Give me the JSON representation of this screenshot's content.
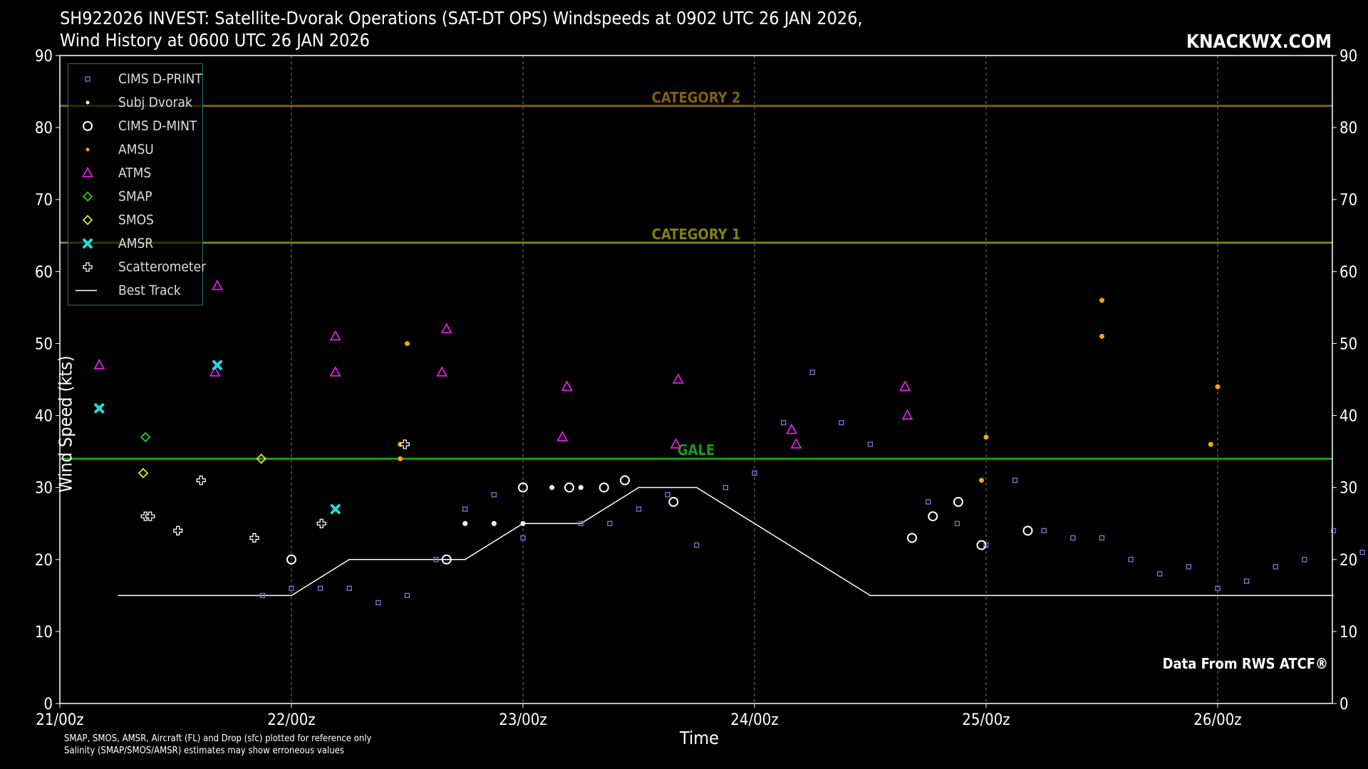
{
  "header": {
    "title_line1": "SH922026 INVEST: Satellite-Dvorak Operations (SAT-DT OPS) Windspeeds at 0902 UTC 26 JAN 2026,",
    "title_line2": "Wind History at 0600 UTC 26 JAN 2026",
    "brand": "KNACKWX.COM"
  },
  "footer": {
    "credit": "Data From RWS ATCF®",
    "note_line1": "SMAP, SMOS, AMSR, Aircraft (FL) and Drop (sfc) plotted for reference only",
    "note_line2": "Salinity (SMAP/SMOS/AMSR) estimates may show erroneous values"
  },
  "colors": {
    "dprint": "#8f6fdc",
    "subj": "#ffffff",
    "dmint": "#ffffff",
    "amsu": "#ffa500",
    "atms": "#e01ee0",
    "smap": "#22cc22",
    "smos": "#e6e61e",
    "amsr": "#22dcdc",
    "scat": "#ffffff",
    "best": "#ffffff",
    "cat2": "#806010",
    "cat1": "#808010",
    "gale": "#12a012"
  },
  "chart_data": {
    "type": "scatter",
    "title": "SH922026 INVEST: Satellite-Dvorak Operations (SAT-DT OPS) Windspeeds at 0902 UTC 26 JAN 2026, Wind History at 0600 UTC 26 JAN 2026",
    "xlabel": "Time",
    "ylabel": "Wind Speed (kts)",
    "x_unit": "days since 21/00z",
    "xlim": [
      0,
      5.5
    ],
    "ylim": [
      0,
      90
    ],
    "xticks": [
      0,
      1,
      2,
      3,
      4,
      5
    ],
    "xtick_labels": [
      "21/00z",
      "22/00z",
      "23/00z",
      "24/00z",
      "25/00z",
      "26/00z"
    ],
    "yticks": [
      0,
      10,
      20,
      30,
      40,
      50,
      60,
      70,
      80,
      90
    ],
    "reference_lines": [
      {
        "label": "CATEGORY 2",
        "y": 83,
        "color": "#806010"
      },
      {
        "label": "CATEGORY 1",
        "y": 64,
        "color": "#808010"
      },
      {
        "label": "GALE",
        "y": 34,
        "color": "#12a012"
      }
    ],
    "legend": [
      "CIMS D-PRINT",
      "Subj Dvorak",
      "CIMS D-MINT",
      "AMSU",
      "ATMS",
      "SMAP",
      "SMOS",
      "AMSR",
      "Scatterometer",
      "Best Track"
    ],
    "series": [
      {
        "name": "CIMS D-PRINT",
        "marker": "square",
        "points": [
          [
            0.875,
            15
          ],
          [
            1.0,
            16
          ],
          [
            1.125,
            16
          ],
          [
            1.25,
            16
          ],
          [
            1.375,
            14
          ],
          [
            1.5,
            15
          ],
          [
            1.625,
            20
          ],
          [
            1.75,
            27
          ],
          [
            1.875,
            29
          ],
          [
            2.0,
            23
          ],
          [
            2.25,
            25
          ],
          [
            2.375,
            25
          ],
          [
            2.5,
            27
          ],
          [
            2.625,
            29
          ],
          [
            2.75,
            22
          ],
          [
            2.875,
            30
          ],
          [
            3.0,
            32
          ],
          [
            3.125,
            39
          ],
          [
            3.25,
            46
          ],
          [
            3.375,
            39
          ],
          [
            3.5,
            36
          ],
          [
            3.75,
            28
          ],
          [
            3.875,
            25
          ],
          [
            4.0,
            22
          ],
          [
            4.125,
            31
          ],
          [
            4.25,
            24
          ],
          [
            4.375,
            23
          ],
          [
            4.5,
            23
          ],
          [
            4.625,
            20
          ],
          [
            4.75,
            18
          ],
          [
            4.875,
            19
          ],
          [
            5.0,
            16
          ],
          [
            5.125,
            17
          ],
          [
            5.25,
            19
          ],
          [
            5.375,
            20
          ],
          [
            5.5,
            24
          ],
          [
            5.625,
            21
          ]
        ]
      },
      {
        "name": "Subj Dvorak",
        "marker": "dot",
        "points": [
          [
            1.75,
            25
          ],
          [
            1.875,
            25
          ],
          [
            2.0,
            25
          ],
          [
            2.125,
            30
          ],
          [
            2.25,
            30
          ]
        ]
      },
      {
        "name": "CIMS D-MINT",
        "marker": "circle",
        "points": [
          [
            1.0,
            20
          ],
          [
            1.67,
            20
          ],
          [
            2.0,
            30
          ],
          [
            2.2,
            30
          ],
          [
            2.35,
            30
          ],
          [
            2.44,
            31
          ],
          [
            2.65,
            28
          ],
          [
            3.68,
            23
          ],
          [
            3.77,
            26
          ],
          [
            3.88,
            28
          ],
          [
            3.98,
            22
          ],
          [
            4.18,
            24
          ]
        ]
      },
      {
        "name": "AMSU",
        "marker": "dot",
        "points": [
          [
            1.5,
            50
          ],
          [
            1.47,
            36
          ],
          [
            1.47,
            34
          ],
          [
            3.98,
            31
          ],
          [
            4.0,
            37
          ],
          [
            4.5,
            56
          ],
          [
            4.5,
            51
          ],
          [
            5.0,
            44
          ],
          [
            4.97,
            36
          ]
        ]
      },
      {
        "name": "ATMS",
        "marker": "triangle",
        "points": [
          [
            0.17,
            47
          ],
          [
            0.68,
            58
          ],
          [
            0.67,
            46
          ],
          [
            1.19,
            51
          ],
          [
            1.19,
            46
          ],
          [
            1.67,
            52
          ],
          [
            1.65,
            46
          ],
          [
            2.19,
            44
          ],
          [
            2.17,
            37
          ],
          [
            2.67,
            45
          ],
          [
            2.66,
            36
          ],
          [
            3.16,
            38
          ],
          [
            3.18,
            36
          ],
          [
            3.65,
            44
          ],
          [
            3.66,
            40
          ]
        ]
      },
      {
        "name": "SMAP",
        "marker": "diamond",
        "points": [
          [
            0.37,
            37
          ]
        ]
      },
      {
        "name": "SMOS",
        "marker": "diamond",
        "points": [
          [
            0.36,
            32
          ],
          [
            0.87,
            34
          ]
        ]
      },
      {
        "name": "AMSR",
        "marker": "x",
        "points": [
          [
            0.17,
            41
          ],
          [
            0.68,
            47
          ],
          [
            1.19,
            27
          ]
        ]
      },
      {
        "name": "Scatterometer",
        "marker": "plus",
        "points": [
          [
            0.37,
            26
          ],
          [
            0.39,
            26
          ],
          [
            0.51,
            24
          ],
          [
            0.61,
            31
          ],
          [
            0.84,
            23
          ],
          [
            1.13,
            25
          ],
          [
            1.49,
            36
          ]
        ]
      },
      {
        "name": "Best Track",
        "marker": "line",
        "points": [
          [
            0.25,
            15
          ],
          [
            1.0,
            15
          ],
          [
            1.25,
            20
          ],
          [
            1.75,
            20
          ],
          [
            2.0,
            25
          ],
          [
            2.25,
            25
          ],
          [
            2.5,
            30
          ],
          [
            2.75,
            30
          ],
          [
            3.5,
            15
          ],
          [
            5.5,
            15
          ]
        ]
      }
    ]
  }
}
